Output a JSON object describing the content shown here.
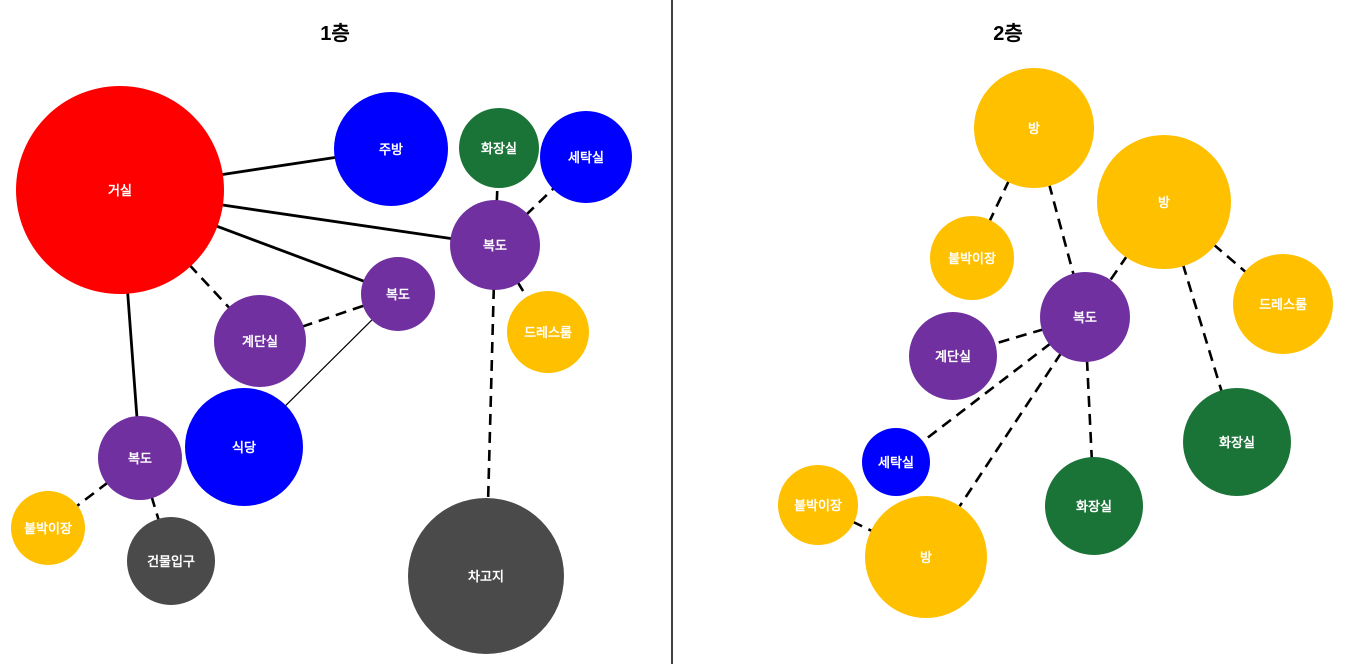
{
  "colors": {
    "red": "#ff0000",
    "blue": "#0000ff",
    "green": "#1b7437",
    "purple": "#7030a0",
    "yellow": "#ffc000",
    "gray": "#4a4a4a"
  },
  "floors": [
    {
      "title": "1층",
      "rooms": [
        {
          "id": "f1-living",
          "label": "거실",
          "color": "red"
        },
        {
          "id": "f1-kitchen",
          "label": "주방",
          "color": "blue"
        },
        {
          "id": "f1-bath",
          "label": "화장실",
          "color": "green"
        },
        {
          "id": "f1-laundry",
          "label": "세탁실",
          "color": "blue"
        },
        {
          "id": "f1-hall-right",
          "label": "복도",
          "color": "purple"
        },
        {
          "id": "f1-hall-mid",
          "label": "복도",
          "color": "purple"
        },
        {
          "id": "f1-stairs",
          "label": "계단실",
          "color": "purple"
        },
        {
          "id": "f1-dress",
          "label": "드레스룸",
          "color": "yellow"
        },
        {
          "id": "f1-dining",
          "label": "식당",
          "color": "blue"
        },
        {
          "id": "f1-hall-left",
          "label": "복도",
          "color": "purple"
        },
        {
          "id": "f1-closet",
          "label": "붙박이장",
          "color": "yellow"
        },
        {
          "id": "f1-entrance",
          "label": "건물입구",
          "color": "gray"
        },
        {
          "id": "f1-garage",
          "label": "차고지",
          "color": "gray"
        }
      ],
      "connections": [
        {
          "from": "f1-living",
          "to": "f1-kitchen",
          "style": "solid"
        },
        {
          "from": "f1-living",
          "to": "f1-hall-right",
          "style": "solid"
        },
        {
          "from": "f1-living",
          "to": "f1-hall-mid",
          "style": "solid"
        },
        {
          "from": "f1-living",
          "to": "f1-hall-left",
          "style": "solid"
        },
        {
          "from": "f1-living",
          "to": "f1-stairs",
          "style": "dashed"
        },
        {
          "from": "f1-stairs",
          "to": "f1-hall-mid",
          "style": "dashed"
        },
        {
          "from": "f1-hall-mid",
          "to": "f1-dining",
          "style": "thin"
        },
        {
          "from": "f1-hall-right",
          "to": "f1-bath",
          "style": "dashed"
        },
        {
          "from": "f1-hall-right",
          "to": "f1-laundry",
          "style": "dashed"
        },
        {
          "from": "f1-hall-right",
          "to": "f1-dress",
          "style": "dashed"
        },
        {
          "from": "f1-hall-right",
          "to": "f1-garage",
          "style": "dashed"
        },
        {
          "from": "f1-hall-left",
          "to": "f1-closet",
          "style": "dashed"
        },
        {
          "from": "f1-hall-left",
          "to": "f1-entrance",
          "style": "dashed"
        }
      ]
    },
    {
      "title": "2층",
      "rooms": [
        {
          "id": "f2-room-top",
          "label": "방",
          "color": "yellow"
        },
        {
          "id": "f2-room-right",
          "label": "방",
          "color": "yellow"
        },
        {
          "id": "f2-closet-top",
          "label": "붙박이장",
          "color": "yellow"
        },
        {
          "id": "f2-dress",
          "label": "드레스룸",
          "color": "yellow"
        },
        {
          "id": "f2-hall",
          "label": "복도",
          "color": "purple"
        },
        {
          "id": "f2-stairs",
          "label": "계단실",
          "color": "purple"
        },
        {
          "id": "f2-bath-right",
          "label": "화장실",
          "color": "green"
        },
        {
          "id": "f2-laundry",
          "label": "세탁실",
          "color": "blue"
        },
        {
          "id": "f2-closet-bottom",
          "label": "붙박이장",
          "color": "yellow"
        },
        {
          "id": "f2-bath-mid",
          "label": "화장실",
          "color": "green"
        },
        {
          "id": "f2-room-bottom",
          "label": "방",
          "color": "yellow"
        }
      ],
      "connections": [
        {
          "from": "f2-room-top",
          "to": "f2-closet-top",
          "style": "dashed"
        },
        {
          "from": "f2-room-top",
          "to": "f2-hall",
          "style": "dashed"
        },
        {
          "from": "f2-room-right",
          "to": "f2-hall",
          "style": "dashed"
        },
        {
          "from": "f2-room-right",
          "to": "f2-dress",
          "style": "dashed"
        },
        {
          "from": "f2-room-right",
          "to": "f2-bath-right",
          "style": "dashed"
        },
        {
          "from": "f2-hall",
          "to": "f2-stairs",
          "style": "dashed"
        },
        {
          "from": "f2-hall",
          "to": "f2-laundry",
          "style": "dashed"
        },
        {
          "from": "f2-hall",
          "to": "f2-room-bottom",
          "style": "dashed"
        },
        {
          "from": "f2-hall",
          "to": "f2-bath-mid",
          "style": "dashed"
        },
        {
          "from": "f2-closet-bottom",
          "to": "f2-room-bottom",
          "style": "dashed"
        }
      ]
    }
  ]
}
